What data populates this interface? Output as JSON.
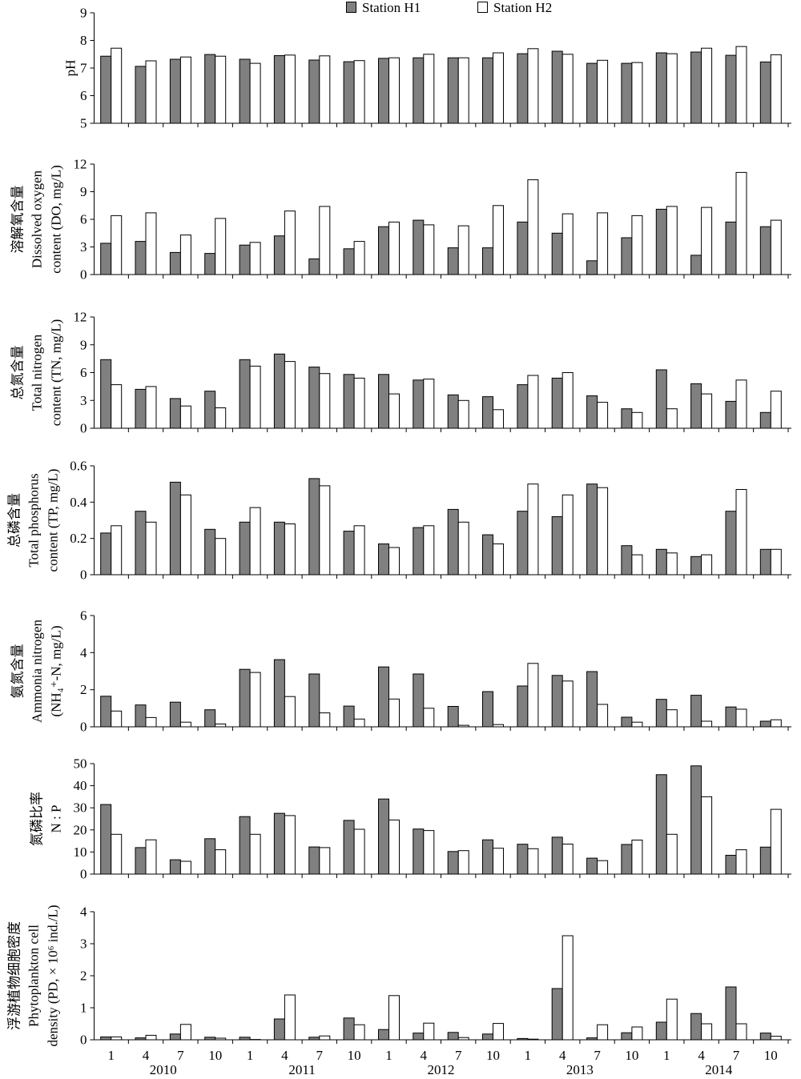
{
  "chart_data": {
    "type": "bar",
    "series_names": [
      "Station H1",
      "Station H2"
    ],
    "series_colors": [
      "#808080",
      "#ffffff"
    ],
    "legend": "top-center",
    "grid": false,
    "categories": [
      "1",
      "4",
      "7",
      "10",
      "1",
      "4",
      "7",
      "10",
      "1",
      "4",
      "7",
      "10",
      "1",
      "4",
      "7",
      "10",
      "1",
      "4",
      "7",
      "10"
    ],
    "category_groups": [
      "2010",
      "2011",
      "2012",
      "2013",
      "2014"
    ],
    "panels": [
      {
        "ylabel": [
          "pH"
        ],
        "ylim": [
          5,
          9
        ],
        "yticks": [
          5,
          6,
          7,
          8,
          9
        ],
        "series": [
          {
            "values": [
              7.43,
              7.06,
              7.32,
              7.49,
              7.32,
              7.45,
              7.29,
              7.23,
              7.35,
              7.37,
              7.37,
              7.37,
              7.52,
              7.61,
              7.17,
              7.17,
              7.55,
              7.58,
              7.46,
              7.22
            ]
          },
          {
            "values": [
              7.72,
              7.26,
              7.4,
              7.43,
              7.17,
              7.47,
              7.44,
              7.27,
              7.37,
              7.5,
              7.37,
              7.55,
              7.7,
              7.5,
              7.28,
              7.2,
              7.52,
              7.72,
              7.78,
              7.48
            ]
          }
        ]
      },
      {
        "ylabel": [
          "溶解氧含量",
          "Dissolved oxygen",
          "content (DO, mg/L)"
        ],
        "ylim": [
          0,
          12
        ],
        "yticks": [
          0,
          3,
          6,
          9,
          12
        ],
        "series": [
          {
            "values": [
              3.4,
              3.6,
              2.4,
              2.3,
              3.2,
              4.2,
              1.7,
              2.8,
              5.2,
              5.9,
              2.9,
              2.9,
              5.7,
              4.5,
              1.5,
              4.0,
              7.1,
              2.1,
              5.7,
              5.2
            ]
          },
          {
            "values": [
              6.4,
              6.7,
              4.3,
              6.1,
              3.5,
              6.9,
              7.4,
              3.6,
              5.7,
              5.4,
              5.3,
              7.5,
              10.3,
              6.6,
              6.7,
              6.4,
              7.4,
              7.3,
              11.1,
              5.9
            ]
          }
        ]
      },
      {
        "ylabel": [
          "总氮含量",
          "Total nitrogen",
          "content (TN, mg/L)"
        ],
        "ylim": [
          0,
          12
        ],
        "yticks": [
          0,
          3,
          6,
          9,
          12
        ],
        "series": [
          {
            "values": [
              7.4,
              4.2,
              3.2,
              4.0,
              7.4,
              8.0,
              6.6,
              5.8,
              5.8,
              5.2,
              3.6,
              3.4,
              4.7,
              5.4,
              3.5,
              2.1,
              6.3,
              4.8,
              2.9,
              1.7
            ]
          },
          {
            "values": [
              4.7,
              4.5,
              2.4,
              2.2,
              6.7,
              7.2,
              5.9,
              5.4,
              3.7,
              5.3,
              3.0,
              2.0,
              5.7,
              6.0,
              2.8,
              1.7,
              2.1,
              3.7,
              5.2,
              4.0
            ]
          }
        ]
      },
      {
        "ylabel": [
          "总磷含量",
          "Total phosphorus",
          "content (TP, mg/L)"
        ],
        "ylim": [
          0,
          0.6
        ],
        "yticks": [
          0,
          0.2,
          0.4,
          0.6
        ],
        "series": [
          {
            "values": [
              0.23,
              0.35,
              0.51,
              0.25,
              0.29,
              0.29,
              0.53,
              0.24,
              0.17,
              0.26,
              0.36,
              0.22,
              0.35,
              0.32,
              0.5,
              0.16,
              0.14,
              0.1,
              0.35,
              0.14
            ]
          },
          {
            "values": [
              0.27,
              0.29,
              0.44,
              0.2,
              0.37,
              0.28,
              0.49,
              0.27,
              0.15,
              0.27,
              0.29,
              0.17,
              0.5,
              0.44,
              0.48,
              0.11,
              0.12,
              0.11,
              0.47,
              0.14
            ]
          }
        ]
      },
      {
        "ylabel": [
          "氨氮含量",
          "Ammonia nitrogen",
          "(NH₄⁺-N, mg/L)"
        ],
        "ylim": [
          0,
          6
        ],
        "yticks": [
          0,
          2,
          4,
          6
        ],
        "series": [
          {
            "values": [
              1.65,
              1.18,
              1.33,
              0.92,
              3.1,
              3.62,
              2.85,
              1.12,
              3.23,
              2.85,
              1.1,
              1.9,
              2.2,
              2.77,
              2.98,
              0.52,
              1.48,
              1.7,
              1.07,
              0.3
            ]
          },
          {
            "values": [
              0.85,
              0.5,
              0.25,
              0.15,
              2.93,
              1.63,
              0.75,
              0.42,
              1.5,
              1.0,
              0.08,
              0.12,
              3.42,
              2.47,
              1.21,
              0.25,
              0.92,
              0.3,
              0.95,
              0.38
            ]
          }
        ]
      },
      {
        "ylabel": [
          "氮磷比率",
          "N : P"
        ],
        "ylim": [
          0,
          50
        ],
        "yticks": [
          0,
          10,
          20,
          30,
          40,
          50
        ],
        "series": [
          {
            "values": [
              31.5,
              12.0,
              6.5,
              16.0,
              26.0,
              27.5,
              12.3,
              24.3,
              34.0,
              20.4,
              10.2,
              15.5,
              13.5,
              16.7,
              7.2,
              13.4,
              45.0,
              49.0,
              8.5,
              12.2
            ]
          },
          {
            "values": [
              18.0,
              15.5,
              5.8,
              11.0,
              18.0,
              26.5,
              12.0,
              20.3,
              24.5,
              19.7,
              10.6,
              11.7,
              11.5,
              13.6,
              6.1,
              15.4,
              18.0,
              35.0,
              11.0,
              29.3
            ]
          }
        ]
      },
      {
        "ylabel": [
          "浮游植物细胞密度",
          "Phytoplankton cell",
          "density (PD, × 10⁶ ind./L)"
        ],
        "ylim": [
          0,
          4
        ],
        "yticks": [
          0,
          1,
          2,
          3,
          4
        ],
        "series": [
          {
            "values": [
              0.09,
              0.06,
              0.18,
              0.08,
              0.08,
              0.65,
              0.08,
              0.68,
              0.32,
              0.21,
              0.23,
              0.18,
              0.04,
              1.6,
              0.06,
              0.22,
              0.55,
              0.82,
              1.65,
              0.21
            ]
          },
          {
            "values": [
              0.09,
              0.14,
              0.48,
              0.05,
              0.01,
              1.4,
              0.12,
              0.47,
              1.38,
              0.52,
              0.07,
              0.51,
              0.02,
              3.25,
              0.47,
              0.4,
              1.27,
              0.5,
              0.5,
              0.11
            ]
          }
        ]
      }
    ]
  }
}
